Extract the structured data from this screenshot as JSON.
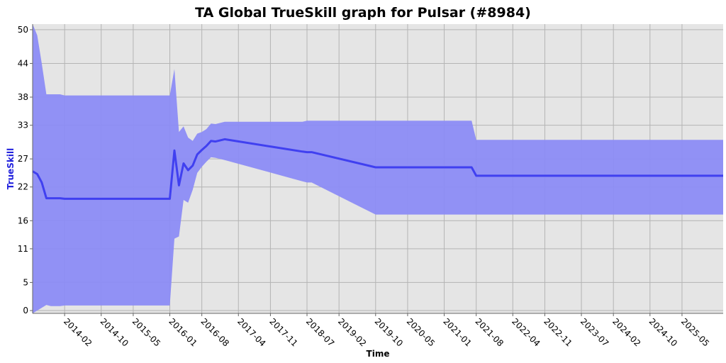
{
  "chart_data": {
    "type": "area",
    "title": "TA Global TrueSkill graph for Pulsar (#8984)",
    "xlabel": "Time",
    "ylabel": "TrueSkill",
    "x_tick_labels": [
      "2014-02",
      "2014-10",
      "2015-05",
      "2016-01",
      "2016-08",
      "2017-04",
      "2017-11",
      "2018-07",
      "2019-02",
      "2019-10",
      "2020-05",
      "2021-01",
      "2021-08",
      "2022-04",
      "2022-11",
      "2023-07",
      "2024-02",
      "2024-10",
      "2025-05"
    ],
    "y_ticks": [
      0,
      5,
      11,
      16,
      22,
      27,
      33,
      38,
      44,
      50
    ],
    "ylim": [
      -0.5,
      51
    ],
    "grid": true,
    "colors": {
      "band": "#8c8cf5",
      "line": "#4040f0",
      "plot_bg": "#e5e5e5",
      "ylabel": "#2222dd"
    },
    "series": [
      {
        "x": [
          "2013-07",
          "2013-08",
          "2013-09",
          "2013-10",
          "2013-11",
          "2014-01",
          "2014-02",
          "2016-01",
          "2016-02",
          "2016-03",
          "2016-04",
          "2016-05",
          "2016-06",
          "2016-07",
          "2016-08",
          "2016-09",
          "2016-10",
          "2016-11",
          "2017-01",
          "2018-06",
          "2018-07",
          "2018-08",
          "2019-10",
          "2021-07",
          "2021-08",
          "2026-02"
        ],
        "y": [
          24.8,
          24.3,
          22.8,
          20.0,
          20.0,
          20.0,
          19.9,
          19.9,
          28.5,
          22.3,
          26.2,
          25.0,
          25.8,
          27.8,
          28.6,
          29.3,
          30.2,
          30.1,
          30.5,
          28.3,
          28.2,
          28.2,
          25.5,
          25.5,
          24.0,
          24.0
        ],
        "upper": [
          51.0,
          49.0,
          44.0,
          38.5,
          38.5,
          38.5,
          38.3,
          38.3,
          43.0,
          31.8,
          32.8,
          30.8,
          30.2,
          31.5,
          31.8,
          32.3,
          33.3,
          33.2,
          33.6,
          33.6,
          33.8,
          33.8,
          33.8,
          33.8,
          30.4,
          30.4
        ],
        "lower": [
          -0.5,
          0.0,
          0.5,
          1.0,
          0.8,
          0.8,
          0.9,
          0.9,
          12.8,
          13.2,
          19.7,
          19.2,
          21.5,
          24.5,
          25.6,
          26.5,
          27.3,
          27.2,
          26.8,
          23.0,
          22.8,
          22.8,
          17.1,
          17.1,
          17.1,
          17.1
        ]
      }
    ]
  }
}
